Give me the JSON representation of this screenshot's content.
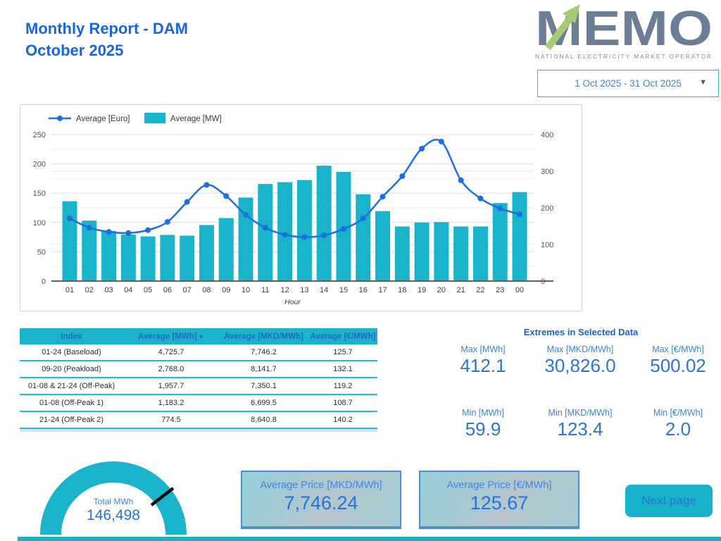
{
  "header": {
    "title_line1": "Monthly Report - DAM",
    "title_line2": "October 2025",
    "logo": {
      "text": "MEMO",
      "subtitle": "NATIONAL ELECTRICITY MARKET OPERATOR"
    },
    "date_range": "1 Oct 2025 - 31 Oct 2025"
  },
  "chart_data": {
    "type": "bar",
    "categories": [
      "01",
      "02",
      "03",
      "04",
      "05",
      "06",
      "07",
      "08",
      "09",
      "10",
      "11",
      "12",
      "13",
      "14",
      "15",
      "16",
      "17",
      "18",
      "19",
      "20",
      "21",
      "22",
      "23",
      "00"
    ],
    "series": [
      {
        "name": "Average [Euro]",
        "type": "line",
        "axis": "left",
        "color": "#1d6fdf",
        "values": [
          107,
          91,
          84,
          82,
          87,
          101,
          135,
          164,
          145,
          113,
          91,
          79,
          75,
          78,
          89,
          107,
          144,
          179,
          226,
          238,
          172,
          141,
          124,
          114
        ]
      },
      {
        "name": "Average [MW]",
        "type": "bar",
        "axis": "right",
        "color": "#1ab4ca",
        "values": [
          218,
          165,
          137,
          127,
          122,
          126,
          124,
          153,
          172,
          228,
          265,
          270,
          276,
          315,
          298,
          237,
          191,
          149,
          160,
          161,
          149,
          149,
          213,
          243
        ]
      }
    ],
    "xlabel": "Hour",
    "left_axis": {
      "min": 0,
      "max": 250,
      "step": 50
    },
    "right_axis": {
      "min": 0,
      "max": 400,
      "step": 100
    },
    "grid": true,
    "legend_position": "top-left"
  },
  "table": {
    "headers": [
      "Index",
      "Average [MWh]",
      "Average [MKD/MWh]",
      "Average [€/MWh]"
    ],
    "sort_column": 1,
    "rows": [
      [
        "01-24 (Baseload)",
        "4,725.7",
        "7,746.2",
        "125.7"
      ],
      [
        "09-20 (Peakload)",
        "2,768.0",
        "8,141.7",
        "132.1"
      ],
      [
        "01-08 & 21-24 (Off-Peak)",
        "1,957.7",
        "7,350.1",
        "119.2"
      ],
      [
        "01-08 (Off-Peak 1)",
        "1,183.2",
        "6,699.5",
        "108.7"
      ],
      [
        "21-24 (Off-Peak 2)",
        "774.5",
        "8,640.8",
        "140.2"
      ]
    ]
  },
  "extremes": {
    "title": "Extremes in Selected Data",
    "max": [
      {
        "label": "Max [MWh]",
        "value": "412.1"
      },
      {
        "label": "Max [MKD/MWh]",
        "value": "30,826.0"
      },
      {
        "label": "Max [€/MWh]",
        "value": "500.02"
      }
    ],
    "min": [
      {
        "label": "Min [MWh]",
        "value": "59.9"
      },
      {
        "label": "Min [MKD/MWh]",
        "value": "123.4"
      },
      {
        "label": "Min [€/MWh]",
        "value": "2.0"
      }
    ]
  },
  "gauge": {
    "label": "Total MWh",
    "value": "146,498"
  },
  "cards": [
    {
      "label": "Average Price [MKD/MWh]",
      "value": "7,746.24"
    },
    {
      "label": "Average Price [€/MWh]",
      "value": "125.67"
    }
  ],
  "next_button": "Next page",
  "colors": {
    "teal": "#1ab4ca",
    "blue": "#1666dd",
    "line_blue": "#1d6fdf",
    "logo_gray": "#6b7e96",
    "logo_green": "#a8cc74"
  }
}
